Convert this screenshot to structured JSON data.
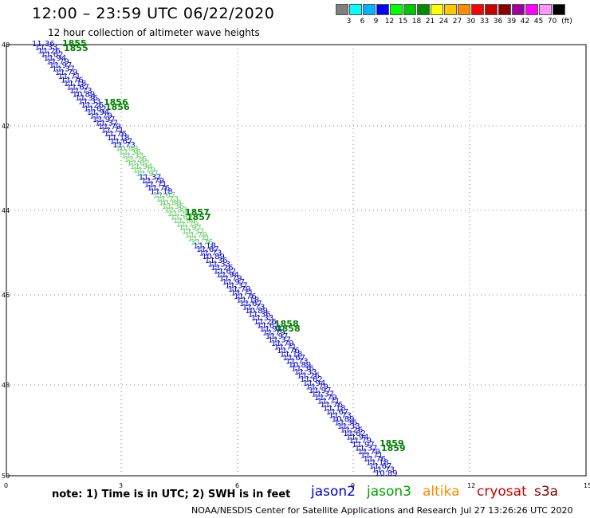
{
  "header": {
    "title": "12:00 – 23:59 UTC 06/22/2020",
    "subtitle": "12 hour collection of altimeter wave heights"
  },
  "colorbar": {
    "colors": [
      "#808080",
      "#00ffff",
      "#00b4ff",
      "#0000ff",
      "#00ff00",
      "#00c800",
      "#008c00",
      "#ffff00",
      "#ffc800",
      "#ff8c00",
      "#ff0000",
      "#c80000",
      "#8c0000",
      "#a000a0",
      "#ff00ff",
      "#ff96ff",
      "#000000"
    ],
    "labels": [
      "3",
      "6",
      "9",
      "12",
      "15",
      "18",
      "21",
      "24",
      "27",
      "30",
      "33",
      "36",
      "39",
      "42",
      "45",
      "70"
    ],
    "unit": "(ft)"
  },
  "map": {
    "lat_labels": [
      "40",
      "42",
      "44",
      "46",
      "48",
      "50"
    ],
    "lon_labels": [
      "0",
      "3",
      "6",
      "9",
      "12",
      "15"
    ],
    "track_color": "#0000cc",
    "highlight_color": "#66cc66",
    "time_color": "#008000",
    "time_labels": [
      "1855",
      "1856",
      "1857",
      "1858",
      "1859"
    ],
    "wave_labels": [
      "11.36",
      "11.33",
      "11.26",
      "11.62",
      "11.94",
      "11.79",
      "11.97",
      "11.37",
      "11.79",
      "11.71",
      "11.76",
      "11.18",
      "11.67",
      "11.73",
      "10.89"
    ]
  },
  "footer": {
    "note": "note: 1) Time is in UTC; 2) SWH is in feet",
    "legend": [
      {
        "label": "jason2",
        "color": "#0000cc"
      },
      {
        "label": "jason3",
        "color": "#00a000"
      },
      {
        "label": "altika",
        "color": "#ff8c00"
      },
      {
        "label": "cryosat",
        "color": "#cc0000"
      },
      {
        "label": "s3a",
        "color": "#800000"
      }
    ],
    "credit": "NOAA/NESDIS Center for Satellite Applications and Research",
    "timestamp": "Jul 27 13:26:26 UTC 2020"
  }
}
